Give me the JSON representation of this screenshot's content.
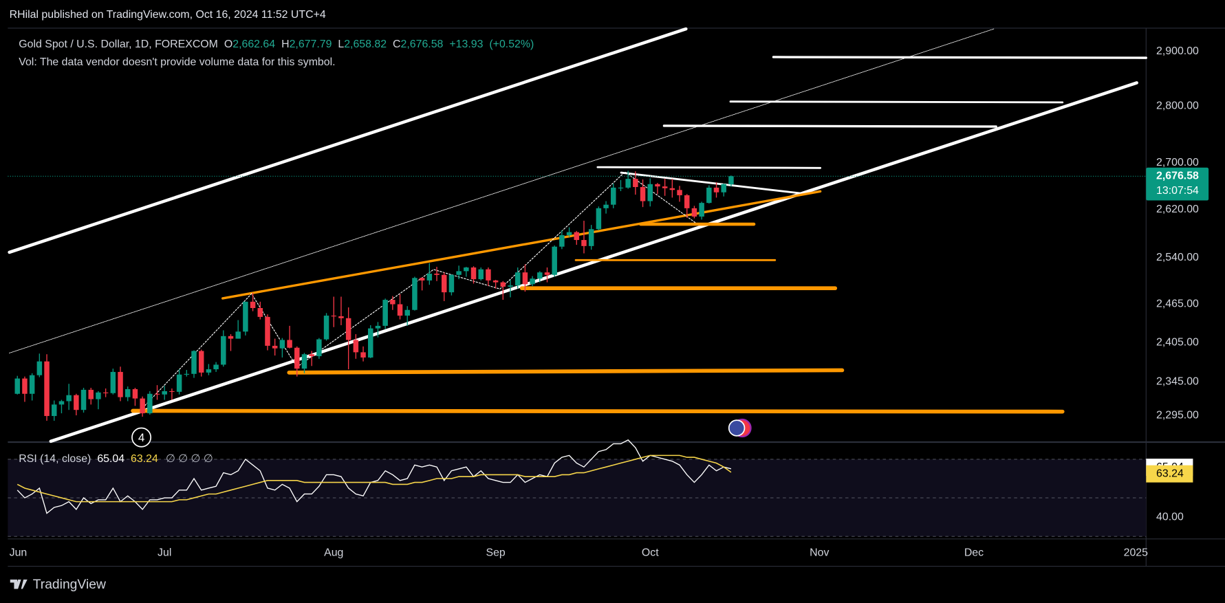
{
  "header": {
    "publisher": "RHilal published on TradingView.com, Oct 16, 2024 11:52 UTC+4"
  },
  "footer": {
    "brand": "TradingView"
  },
  "chart_data": [
    {
      "type": "candlestick",
      "title": "Gold Spot / U.S. Dollar, 1D, FOREXCOM",
      "ohlc_keys": [
        "O",
        "H",
        "L",
        "C"
      ],
      "ohlc_labels": [
        "2,662.64",
        "2,677.79",
        "2,658.82",
        "2,676.58"
      ],
      "change": {
        "value": 13.93,
        "label": "+13.93"
      },
      "change_pct": {
        "value": 0.52,
        "label": "(+0.52%)"
      },
      "note": "Vol: The data vendor doesn't provide volume data for this symbol.",
      "annotation": "4",
      "up_color": "#089981",
      "down_color": "#f23645",
      "log_scale": true,
      "ylim": [
        2257,
        2944
      ],
      "yticks": [
        {
          "value": 2900,
          "label": "2,900.00"
        },
        {
          "value": 2800,
          "label": "2,800.00"
        },
        {
          "value": 2700,
          "label": "2,700.00"
        },
        {
          "value": 2620,
          "label": "2,620.00"
        },
        {
          "value": 2540,
          "label": "2,540.00"
        },
        {
          "value": 2465,
          "label": "2,465.00"
        },
        {
          "value": 2405,
          "label": "2,405.00"
        },
        {
          "value": 2345,
          "label": "2,345.00"
        },
        {
          "value": 2295,
          "label": "2,295.00"
        }
      ],
      "xlim": [
        -1.3,
        153.4
      ],
      "xticks": [
        {
          "value": 0,
          "label": "Jun"
        },
        {
          "value": 20,
          "label": "Jul"
        },
        {
          "value": 43,
          "label": "Aug"
        },
        {
          "value": 65,
          "label": "Sep"
        },
        {
          "value": 86,
          "label": "Oct"
        },
        {
          "value": 109,
          "label": "Nov"
        },
        {
          "value": 130,
          "label": "Dec"
        },
        {
          "value": 152,
          "label": "2025"
        }
      ],
      "last_price_label": "2,676.58",
      "countdown": "13:07:54",
      "candles": [
        [
          2327,
          2354,
          2326,
          2350
        ],
        [
          2350,
          2353,
          2315,
          2327
        ],
        [
          2327,
          2358,
          2317,
          2355
        ],
        [
          2355,
          2388,
          2352,
          2376
        ],
        [
          2376,
          2387,
          2287,
          2294
        ],
        [
          2294,
          2317,
          2287,
          2311
        ],
        [
          2311,
          2318,
          2298,
          2316
        ],
        [
          2316,
          2342,
          2303,
          2325
        ],
        [
          2325,
          2327,
          2295,
          2303
        ],
        [
          2303,
          2336,
          2299,
          2333
        ],
        [
          2333,
          2336,
          2311,
          2319
        ],
        [
          2319,
          2331,
          2304,
          2329
        ],
        [
          2329,
          2335,
          2322,
          2328
        ],
        [
          2328,
          2365,
          2326,
          2360
        ],
        [
          2360,
          2368,
          2316,
          2322
        ],
        [
          2322,
          2338,
          2316,
          2334
        ],
        [
          2334,
          2336,
          2309,
          2320
        ],
        [
          2320,
          2323,
          2293,
          2298
        ],
        [
          2298,
          2331,
          2296,
          2327
        ],
        [
          2327,
          2340,
          2318,
          2326
        ],
        [
          2326,
          2339,
          2318,
          2331
        ],
        [
          2331,
          2335,
          2318,
          2330
        ],
        [
          2330,
          2364,
          2326,
          2356
        ],
        [
          2356,
          2363,
          2353,
          2357
        ],
        [
          2357,
          2393,
          2351,
          2392
        ],
        [
          2392,
          2394,
          2353,
          2359
        ],
        [
          2359,
          2372,
          2355,
          2364
        ],
        [
          2364,
          2375,
          2360,
          2371
        ],
        [
          2371,
          2424,
          2368,
          2415
        ],
        [
          2415,
          2418,
          2392,
          2411
        ],
        [
          2411,
          2440,
          2411,
          2422
        ],
        [
          2422,
          2469,
          2416,
          2469
        ],
        [
          2469,
          2483,
          2454,
          2459
        ],
        [
          2459,
          2469,
          2441,
          2445
        ],
        [
          2445,
          2449,
          2393,
          2400
        ],
        [
          2400,
          2411,
          2385,
          2396
        ],
        [
          2396,
          2412,
          2382,
          2409
        ],
        [
          2409,
          2431,
          2396,
          2397
        ],
        [
          2397,
          2399,
          2353,
          2365
        ],
        [
          2365,
          2389,
          2358,
          2387
        ],
        [
          2387,
          2392,
          2369,
          2384
        ],
        [
          2384,
          2412,
          2380,
          2410
        ],
        [
          2410,
          2451,
          2408,
          2447
        ],
        [
          2447,
          2477,
          2429,
          2446
        ],
        [
          2446,
          2477,
          2432,
          2443
        ],
        [
          2443,
          2460,
          2364,
          2409
        ],
        [
          2409,
          2418,
          2380,
          2390
        ],
        [
          2390,
          2399,
          2376,
          2382
        ],
        [
          2382,
          2432,
          2381,
          2427
        ],
        [
          2427,
          2437,
          2413,
          2431
        ],
        [
          2431,
          2474,
          2426,
          2472
        ],
        [
          2472,
          2478,
          2456,
          2465
        ],
        [
          2465,
          2481,
          2441,
          2447
        ],
        [
          2447,
          2462,
          2431,
          2456
        ],
        [
          2456,
          2509,
          2455,
          2507
        ],
        [
          2507,
          2508,
          2487,
          2503
        ],
        [
          2503,
          2531,
          2496,
          2514
        ],
        [
          2514,
          2525,
          2502,
          2512
        ],
        [
          2512,
          2516,
          2470,
          2484
        ],
        [
          2484,
          2513,
          2479,
          2512
        ],
        [
          2512,
          2527,
          2505,
          2518
        ],
        [
          2518,
          2525,
          2509,
          2524
        ],
        [
          2524,
          2526,
          2498,
          2505
        ],
        [
          2505,
          2524,
          2503,
          2521
        ],
        [
          2521,
          2524,
          2494,
          2503
        ],
        [
          2503,
          2504,
          2490,
          2500
        ],
        [
          2500,
          2502,
          2472,
          2493
        ],
        [
          2493,
          2504,
          2476,
          2495
        ],
        [
          2495,
          2524,
          2490,
          2516
        ],
        [
          2516,
          2529,
          2485,
          2497
        ],
        [
          2497,
          2510,
          2494,
          2506
        ],
        [
          2506,
          2518,
          2500,
          2516
        ],
        [
          2516,
          2524,
          2500,
          2512
        ],
        [
          2512,
          2560,
          2509,
          2558
        ],
        [
          2558,
          2585,
          2554,
          2577
        ],
        [
          2577,
          2590,
          2574,
          2582
        ],
        [
          2582,
          2584,
          2561,
          2569
        ],
        [
          2569,
          2601,
          2547,
          2559
        ],
        [
          2559,
          2594,
          2553,
          2587
        ],
        [
          2587,
          2625,
          2585,
          2622
        ],
        [
          2622,
          2634,
          2613,
          2628
        ],
        [
          2628,
          2664,
          2622,
          2657
        ],
        [
          2657,
          2670,
          2651,
          2657
        ],
        [
          2657,
          2686,
          2655,
          2672
        ],
        [
          2672,
          2685,
          2645,
          2658
        ],
        [
          2658,
          2671,
          2624,
          2634
        ],
        [
          2634,
          2673,
          2625,
          2663
        ],
        [
          2663,
          2665,
          2646,
          2659
        ],
        [
          2659,
          2672,
          2643,
          2656
        ],
        [
          2656,
          2672,
          2640,
          2653
        ],
        [
          2653,
          2660,
          2633,
          2644
        ],
        [
          2644,
          2646,
          2606,
          2622
        ],
        [
          2622,
          2626,
          2605,
          2608
        ],
        [
          2608,
          2633,
          2603,
          2631
        ],
        [
          2631,
          2661,
          2630,
          2657
        ],
        [
          2657,
          2666,
          2640,
          2649
        ],
        [
          2649,
          2664,
          2642,
          2663
        ],
        [
          2662.64,
          2677.79,
          2658.82,
          2676.58
        ]
      ]
    },
    {
      "type": "line",
      "title": "RSI (14, close)",
      "placeholders": "∅ ∅ ∅ ∅",
      "ylim": [
        28.7,
        78.5
      ],
      "yticks": [
        {
          "value": 40,
          "label": "40.00"
        }
      ],
      "bands": [
        70,
        50,
        30
      ],
      "series": [
        {
          "color": "#ffffff",
          "values": [
            54,
            50,
            52,
            55,
            42,
            45,
            46,
            48,
            44,
            50,
            47,
            49,
            49,
            55,
            48,
            51,
            48,
            44,
            49,
            49,
            50,
            50,
            54,
            54,
            60,
            54,
            55,
            56,
            63,
            62,
            64,
            70,
            67,
            64,
            55,
            54,
            57,
            55,
            48,
            52,
            52,
            56,
            62,
            62,
            61,
            55,
            52,
            51,
            58,
            59,
            64,
            62,
            59,
            60,
            67,
            66,
            67,
            66,
            59,
            64,
            65,
            66,
            61,
            64,
            60,
            59,
            58,
            58,
            62,
            58,
            60,
            62,
            61,
            68,
            71,
            72,
            68,
            66,
            70,
            74,
            75,
            78,
            78,
            80,
            76,
            69,
            72,
            71,
            70,
            69,
            67,
            62,
            58,
            62,
            67,
            64,
            66,
            65.04
          ]
        },
        {
          "color": "#f7d64a",
          "values": [
            57,
            55,
            54,
            53,
            52,
            51,
            50,
            49,
            48,
            48,
            48,
            48,
            48,
            48,
            48,
            48,
            48,
            48,
            48,
            48,
            48,
            48,
            49,
            49,
            50,
            51,
            52,
            52,
            53,
            54,
            55,
            56,
            57,
            58,
            59,
            59,
            59,
            59,
            59,
            58,
            58,
            58,
            58,
            58,
            58,
            58,
            58,
            58,
            58,
            58,
            58,
            57,
            57,
            57,
            58,
            58,
            59,
            60,
            60,
            60,
            61,
            61,
            61,
            62,
            62,
            62,
            62,
            62,
            62,
            61,
            61,
            61,
            61,
            61,
            62,
            62,
            63,
            63,
            64,
            65,
            66,
            67,
            68,
            69,
            70,
            71,
            72,
            72,
            72,
            72,
            72,
            71,
            71,
            70,
            69,
            68,
            66,
            63.24
          ]
        }
      ]
    }
  ]
}
